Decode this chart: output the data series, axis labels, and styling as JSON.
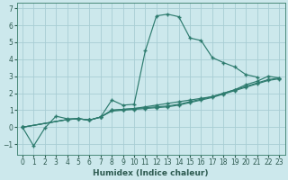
{
  "xlabel": "Humidex (Indice chaleur)",
  "bg_color": "#cce8ec",
  "grid_color": "#a8cdd4",
  "line_color": "#2d7b6e",
  "xlim": [
    -0.5,
    23.5
  ],
  "ylim": [
    -1.6,
    7.3
  ],
  "xticks": [
    0,
    1,
    2,
    3,
    4,
    5,
    6,
    7,
    8,
    9,
    10,
    11,
    12,
    13,
    14,
    15,
    16,
    17,
    18,
    19,
    20,
    21,
    22,
    23
  ],
  "yticks": [
    -1,
    0,
    1,
    2,
    3,
    4,
    5,
    6,
    7
  ],
  "line1_x": [
    0,
    1,
    2,
    3,
    4,
    5,
    6,
    7,
    8,
    9,
    10,
    11,
    12,
    13,
    14,
    15,
    16,
    17,
    18,
    19,
    20,
    21
  ],
  "line1_y": [
    0.0,
    -1.1,
    -0.05,
    0.65,
    0.5,
    0.5,
    0.42,
    0.6,
    1.6,
    1.3,
    1.35,
    4.5,
    6.55,
    6.65,
    6.5,
    5.25,
    5.1,
    4.1,
    3.8,
    3.55,
    3.1,
    2.95
  ],
  "line2_x": [
    0,
    4,
    5,
    6,
    7,
    8,
    9,
    10,
    11,
    12,
    13,
    14,
    15,
    16,
    17,
    18,
    19,
    20,
    21,
    22,
    23
  ],
  "line2_y": [
    0.0,
    0.45,
    0.5,
    0.42,
    0.6,
    1.0,
    1.05,
    1.1,
    1.2,
    1.3,
    1.4,
    1.5,
    1.6,
    1.7,
    1.8,
    2.0,
    2.2,
    2.5,
    2.7,
    3.0,
    2.9
  ],
  "line3_x": [
    0,
    4,
    5,
    6,
    7,
    8,
    9,
    10,
    11,
    12,
    13,
    14,
    15,
    16,
    17,
    18,
    19,
    20,
    21,
    22,
    23
  ],
  "line3_y": [
    0.0,
    0.45,
    0.5,
    0.42,
    0.6,
    1.0,
    1.05,
    1.1,
    1.15,
    1.2,
    1.25,
    1.35,
    1.5,
    1.65,
    1.8,
    2.0,
    2.2,
    2.4,
    2.6,
    2.8,
    2.9
  ],
  "line4_x": [
    0,
    4,
    5,
    6,
    7,
    8,
    9,
    10,
    11,
    12,
    13,
    14,
    15,
    16,
    17,
    18,
    19,
    20,
    21,
    22,
    23
  ],
  "line4_y": [
    0.0,
    0.45,
    0.5,
    0.42,
    0.6,
    0.95,
    1.0,
    1.05,
    1.1,
    1.15,
    1.2,
    1.3,
    1.45,
    1.6,
    1.75,
    1.95,
    2.15,
    2.35,
    2.55,
    2.75,
    2.85
  ]
}
